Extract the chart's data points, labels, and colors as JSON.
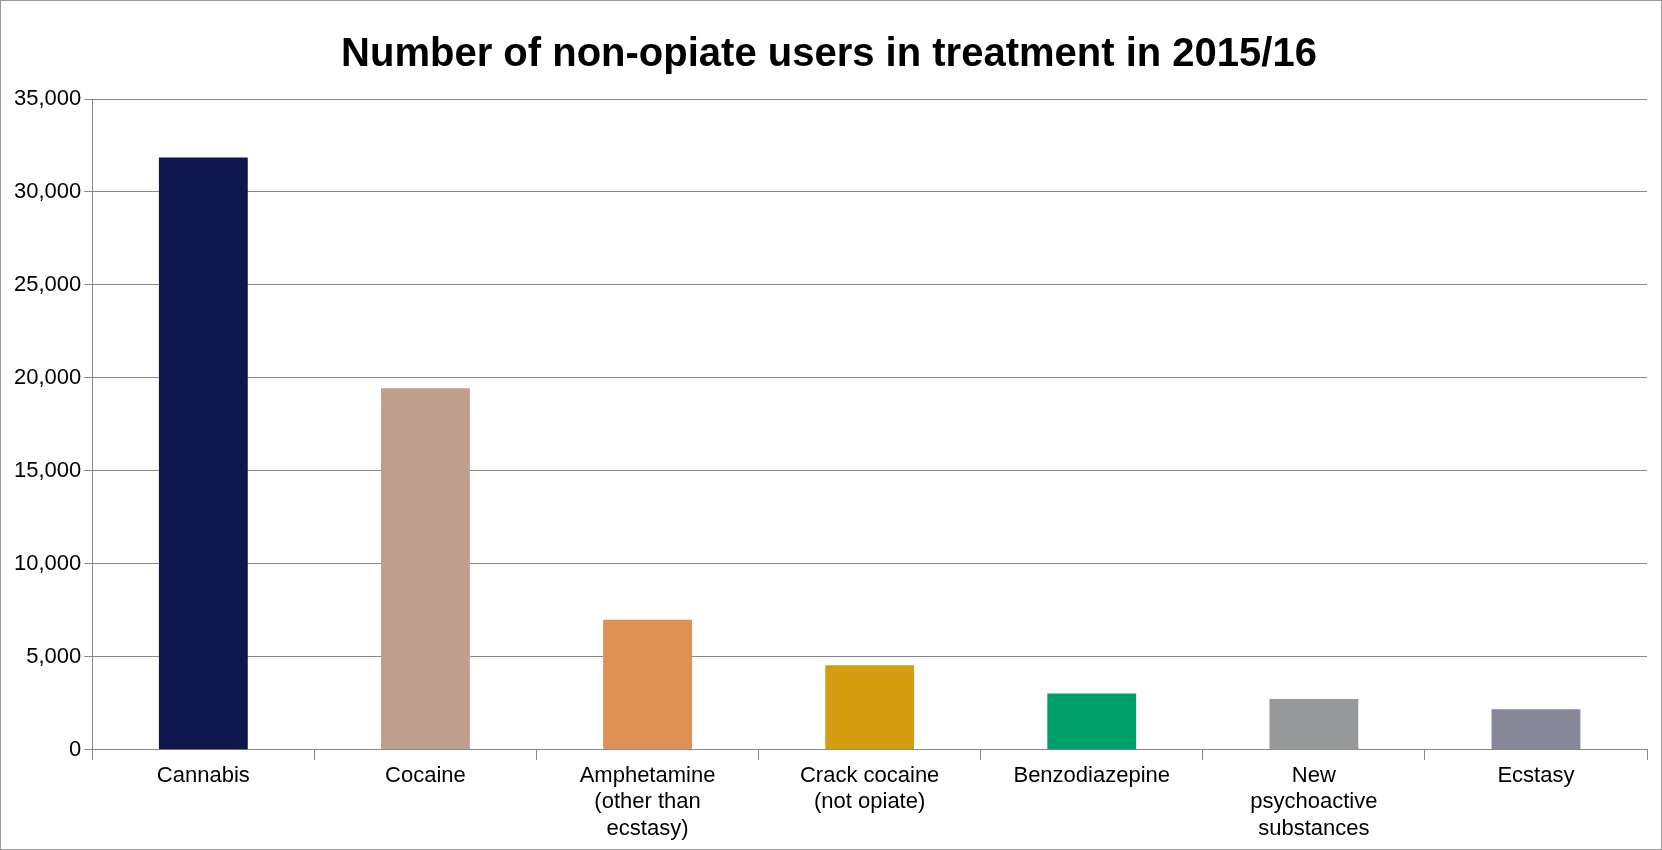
{
  "chart_data": {
    "type": "bar",
    "title": "Number of non-opiate users in treatment in 2015/16",
    "categories": [
      "Cannabis",
      "Cocaine",
      "Amphetamine (other than ecstasy)",
      "Crack cocaine (not opiate)",
      "Benzodiazepine",
      "New psychoactive substances",
      "Ecstasy"
    ],
    "values": [
      31850,
      19450,
      7000,
      4550,
      3030,
      2730,
      2180
    ],
    "colors": [
      "#0f154f",
      "#bf9e8e",
      "#df9055",
      "#d49e10",
      "#00a06a",
      "#97989a",
      "#868799"
    ],
    "ylim": [
      0,
      35000
    ],
    "yticks": [
      0,
      {
        "value": 5000,
        "label": "5,000"
      },
      {
        "value": 10000,
        "label": "10,000"
      },
      {
        "value": 15000,
        "label": "15,000"
      },
      {
        "value": 20000,
        "label": "20,000"
      },
      {
        "value": 25000,
        "label": "25,000"
      },
      {
        "value": 30000,
        "label": "30,000"
      },
      {
        "value": 35000,
        "label": "35,000"
      }
    ],
    "grid": "y",
    "legend": false
  }
}
